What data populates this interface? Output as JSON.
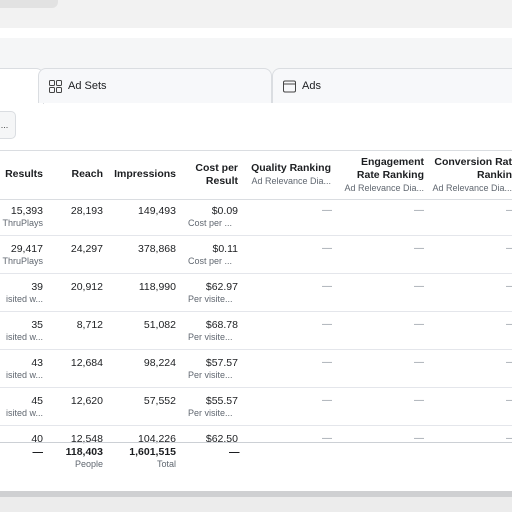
{
  "tabs": {
    "adsets_label": "Ad Sets",
    "ads_label": "Ads"
  },
  "toolbar": {
    "more_label": "..."
  },
  "columns": {
    "results": "Results",
    "reach": "Reach",
    "impressions": "Impressions",
    "cost_line1": "Cost per",
    "cost_line2": "Result",
    "quality_line1": "Quality Ranking",
    "quality_sub": "Ad Relevance Dia...",
    "engagement_line1": "Engagement",
    "engagement_line2": "Rate Ranking",
    "engagement_sub": "Ad Relevance Dia...",
    "conversion_line1": "Conversion Rat",
    "conversion_line2": "Rankin",
    "conversion_sub": "Ad Relevance Dia..."
  },
  "rows": [
    {
      "results": "15,393",
      "results_sub": "ThruPlays",
      "reach": "28,193",
      "impressions": "149,493",
      "cost": "$0.09",
      "cost_sub": "Cost per ..."
    },
    {
      "results": "29,417",
      "results_sub": "ThruPlays",
      "reach": "24,297",
      "impressions": "378,868",
      "cost": "$0.11",
      "cost_sub": "Cost per ..."
    },
    {
      "results": "39",
      "results_sub": "isited w...",
      "reach": "20,912",
      "impressions": "118,990",
      "cost": "$62.97",
      "cost_sub": "Per visite..."
    },
    {
      "results": "35",
      "results_sub": "isited w...",
      "reach": "8,712",
      "impressions": "51,082",
      "cost": "$68.78",
      "cost_sub": "Per visite..."
    },
    {
      "results": "43",
      "results_sub": "isited w...",
      "reach": "12,684",
      "impressions": "98,224",
      "cost": "$57.57",
      "cost_sub": "Per visite..."
    },
    {
      "results": "45",
      "results_sub": "isited w...",
      "reach": "12,620",
      "impressions": "57,552",
      "cost": "$55.57",
      "cost_sub": "Per visite..."
    },
    {
      "results": "40",
      "results_sub": "",
      "reach": "12,548",
      "impressions": "104,226",
      "cost": "$62.50",
      "cost_sub": ""
    }
  ],
  "dash": "—",
  "totals": {
    "results": "—",
    "reach": "118,403",
    "reach_sub": "People",
    "impressions": "1,601,515",
    "impressions_sub": "Total",
    "cost": "—"
  }
}
